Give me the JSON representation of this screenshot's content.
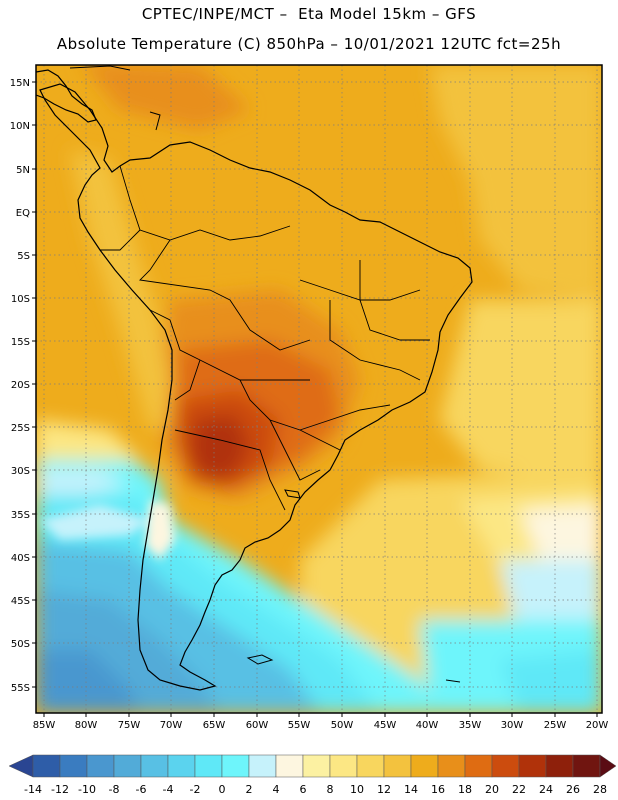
{
  "header": {
    "title_line1": "CPTEC/INPE/MCT –  Eta Model 15km – GFS",
    "title_line2": "Absolute Temperature (C) 850hPa – 10/01/2021 12UTC fct=25h"
  },
  "map": {
    "lat_labels": [
      "15N",
      "10N",
      "5N",
      "EQ",
      "5S",
      "10S",
      "15S",
      "20S",
      "25S",
      "30S",
      "35S",
      "40S",
      "45S",
      "50S",
      "55S"
    ],
    "lon_labels": [
      "85W",
      "80W",
      "75W",
      "70W",
      "65W",
      "60W",
      "55W",
      "50W",
      "45W",
      "40W",
      "35W",
      "30W",
      "25W",
      "20W"
    ]
  },
  "colorbar": {
    "labels": [
      "-14",
      "-12",
      "-10",
      "-8",
      "-6",
      "-4",
      "-2",
      "0",
      "2",
      "4",
      "6",
      "8",
      "10",
      "12",
      "14",
      "16",
      "18",
      "20",
      "22",
      "24",
      "26",
      "28"
    ],
    "colors": [
      "#2a4592",
      "#2e5da8",
      "#3a7cc0",
      "#4a97cf",
      "#52abd8",
      "#58c0e4",
      "#5bd3ee",
      "#5fe8f7",
      "#6ef5fb",
      "#c6f2fb",
      "#fdf6e0",
      "#fcf1a2",
      "#fce784",
      "#f8d65e",
      "#f3c23e",
      "#eeac1c",
      "#e88f1a",
      "#df6c12",
      "#cc4c0e",
      "#b0320a",
      "#8e200b",
      "#701510",
      "#5a0c14"
    ]
  }
}
